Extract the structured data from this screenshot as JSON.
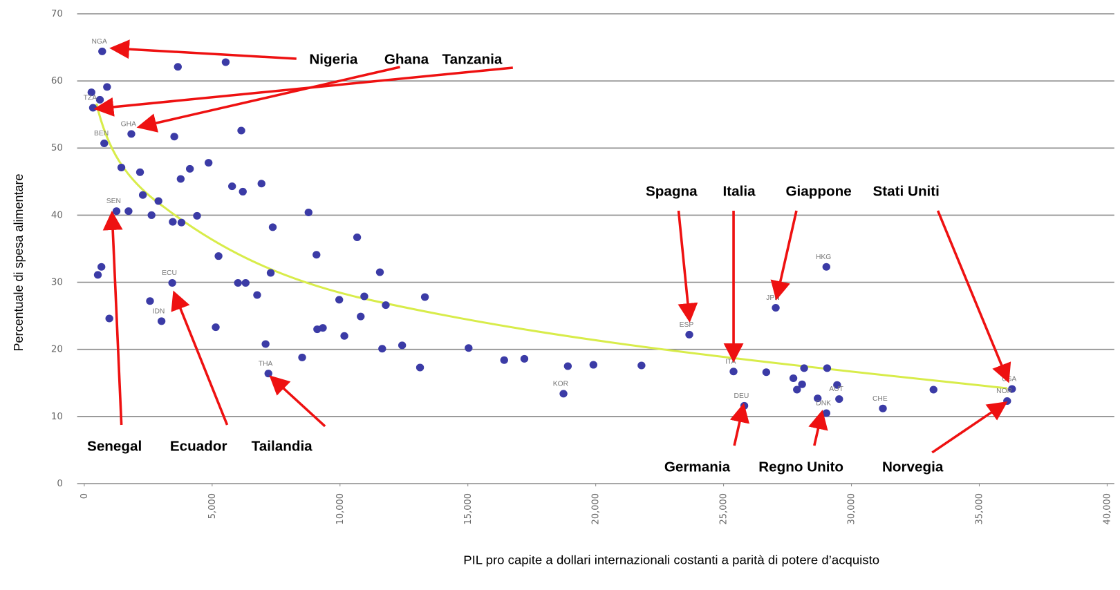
{
  "chart_data": {
    "type": "scatter",
    "x_label": "PIL pro capite a dollari internazionali costanti a parità di potere d’acquisto",
    "y_label": "Percentuale di spesa alimentare",
    "color": "#3b3ba6",
    "grid": true,
    "xlim": [
      0,
      40000
    ],
    "ylim": [
      0,
      70
    ],
    "xticks": [
      0,
      {
        "value": 5000,
        "label": "5,000"
      },
      {
        "value": 10000,
        "label": "10,000"
      },
      {
        "value": 15000,
        "label": "15,000"
      },
      {
        "value": 20000,
        "label": "20,000"
      },
      {
        "value": 25000,
        "label": "25,000"
      },
      {
        "value": 30000,
        "label": "30,000"
      },
      {
        "value": 35000,
        "label": "35,000"
      },
      {
        "value": 40000,
        "label": "40,000"
      }
    ],
    "yticks": [
      0,
      10,
      20,
      30,
      40,
      50,
      60,
      70
    ],
    "x": [
      700,
      3660,
      5530,
      280,
      890,
      610,
      340,
      780,
      1840,
      6140,
      3520,
      1450,
      2180,
      4130,
      4860,
      3770,
      5780,
      6930,
      6200,
      2290,
      2900,
      1260,
      1730,
      2630,
      3460,
      3800,
      4410,
      8770,
      7370,
      10670,
      5250,
      9080,
      670,
      530,
      7290,
      11560,
      29020,
      3440,
      6010,
      6310,
      6760,
      2570,
      9970,
      10950,
      13320,
      11790,
      27040,
      980,
      3020,
      10810,
      5140,
      9110,
      9330,
      10170,
      23660,
      7090,
      11650,
      12430,
      15030,
      8520,
      16420,
      17210,
      18910,
      19910,
      21790,
      13130,
      7200,
      25390,
      26670,
      28150,
      29050,
      27730,
      28070,
      27870,
      29440,
      33210,
      36280,
      18740,
      28680,
      29520,
      36090,
      25810,
      31230,
      29020
    ],
    "values": [
      64.4,
      62.1,
      62.8,
      58.3,
      59.1,
      57.2,
      56.0,
      50.7,
      52.1,
      52.6,
      51.7,
      47.1,
      46.4,
      46.9,
      47.8,
      45.4,
      44.3,
      44.7,
      43.5,
      43.0,
      42.1,
      40.6,
      40.6,
      40.0,
      39.0,
      38.9,
      39.9,
      40.4,
      38.2,
      36.7,
      33.9,
      34.1,
      32.3,
      31.1,
      31.4,
      31.5,
      32.3,
      29.9,
      29.9,
      29.9,
      28.1,
      27.2,
      27.4,
      27.9,
      27.8,
      26.6,
      26.2,
      24.6,
      24.2,
      24.9,
      23.3,
      23.0,
      23.2,
      22.0,
      22.2,
      20.8,
      20.1,
      20.6,
      20.2,
      18.8,
      18.4,
      18.6,
      17.5,
      17.7,
      17.6,
      17.3,
      16.4,
      16.7,
      16.6,
      17.2,
      17.2,
      15.7,
      14.8,
      14.0,
      14.7,
      14.0,
      14.1,
      13.4,
      12.7,
      12.6,
      12.3,
      11.6,
      11.2,
      10.5
    ],
    "point_labels": [
      "NGA",
      null,
      null,
      null,
      null,
      null,
      "TZA",
      "BEN",
      "GHA",
      null,
      null,
      null,
      null,
      null,
      null,
      null,
      null,
      null,
      null,
      null,
      null,
      "SEN",
      null,
      null,
      null,
      null,
      null,
      null,
      null,
      null,
      null,
      null,
      null,
      null,
      null,
      null,
      "HKG",
      "ECU",
      null,
      null,
      null,
      null,
      null,
      null,
      null,
      null,
      "JPN",
      null,
      "IDN",
      null,
      null,
      null,
      null,
      null,
      "ESP",
      null,
      null,
      null,
      null,
      null,
      null,
      null,
      null,
      null,
      null,
      null,
      "THA",
      "ITA",
      null,
      null,
      null,
      null,
      null,
      null,
      null,
      null,
      "USA",
      "KOR",
      null,
      "AUT",
      "NOR",
      "DEU",
      "CHE",
      "DNK"
    ],
    "annotations": [
      [
        "Nigeria",
        "Ghana",
        "Tanzania"
      ],
      [
        "Spagna",
        "Italia",
        "Giappone",
        "Stati Uniti"
      ],
      [
        "Senegal",
        "Ecuador",
        "Tailandia"
      ],
      [
        "Germania",
        "Regno Unito",
        "Norvegia"
      ]
    ]
  }
}
